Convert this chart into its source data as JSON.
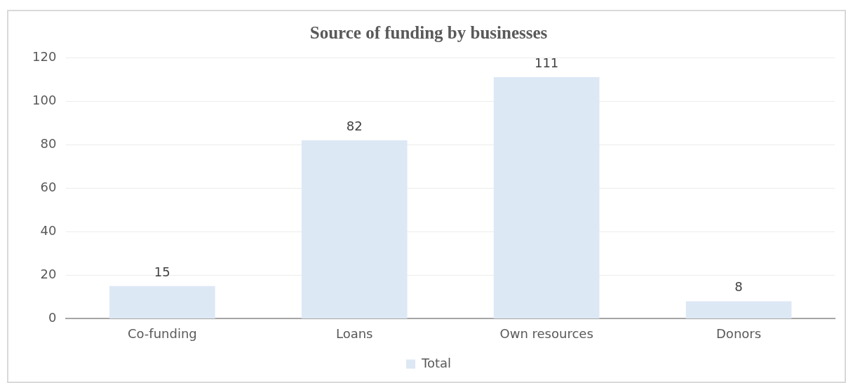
{
  "chart_data": {
    "type": "bar",
    "title": "Source of funding by businesses",
    "categories": [
      "Co-funding",
      "Loans",
      "Own resources",
      "Donors"
    ],
    "series": [
      {
        "name": "Total",
        "color": "#dde8f5",
        "values": [
          15,
          82,
          111,
          8
        ]
      }
    ],
    "ylim": [
      0,
      120
    ],
    "yticks": [
      0,
      20,
      40,
      60,
      80,
      100,
      120
    ],
    "grid": "y",
    "legend": "bottom",
    "data_labels": true
  }
}
